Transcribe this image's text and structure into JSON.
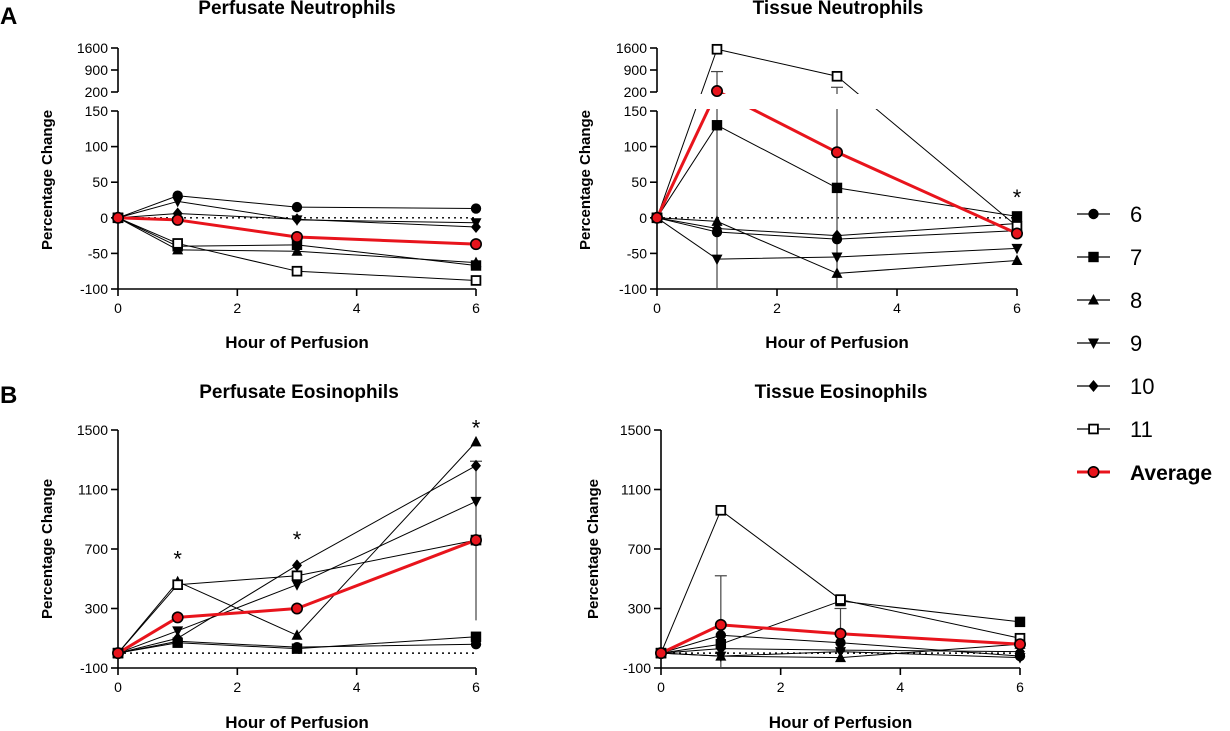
{
  "figure": {
    "panel_labels": [
      "A",
      "B"
    ],
    "x_values": [
      0,
      1,
      3,
      6
    ],
    "colors": {
      "average": "#e8141c",
      "series": "#000000"
    }
  },
  "legend": {
    "entries": [
      {
        "key": "s6",
        "label": "6",
        "marker": "circle"
      },
      {
        "key": "s7",
        "label": "7",
        "marker": "square"
      },
      {
        "key": "s8",
        "label": "8",
        "marker": "triangle-up"
      },
      {
        "key": "s9",
        "label": "9",
        "marker": "triangle-down"
      },
      {
        "key": "s10",
        "label": "10",
        "marker": "diamond"
      },
      {
        "key": "s11",
        "label": "11",
        "marker": "open-square"
      },
      {
        "key": "avg",
        "label": "Average",
        "marker": "red-circle"
      }
    ]
  },
  "chart_data": [
    {
      "id": "perfusate-neutrophils",
      "type": "line",
      "title": "Perfusate Neutrophils",
      "xlabel": "Hour of Perfusion",
      "ylabel": "Percentage Change",
      "xlim": [
        0,
        6
      ],
      "xticks": [
        0,
        2,
        4,
        6
      ],
      "xtick_labels": [
        "0",
        "2",
        "4",
        "6"
      ],
      "axis_break": true,
      "lower_ylim": [
        -100,
        150
      ],
      "lower_yticks": [
        -100,
        -50,
        0,
        50,
        100,
        150
      ],
      "lower_ytick_labels": [
        "-100",
        "-50",
        "0",
        "50",
        "100",
        "150"
      ],
      "upper_ylim": [
        200,
        1600
      ],
      "upper_yticks": [
        200,
        900,
        1600
      ],
      "upper_ytick_labels": [
        "200",
        "900",
        "1600"
      ],
      "x": [
        0,
        1,
        3,
        6
      ],
      "series": [
        {
          "name": "6",
          "values": [
            0,
            31,
            15,
            13
          ]
        },
        {
          "name": "7",
          "values": [
            0,
            -40,
            -38,
            -67
          ]
        },
        {
          "name": "8",
          "values": [
            0,
            -45,
            -47,
            -63
          ]
        },
        {
          "name": "9",
          "values": [
            0,
            23,
            -3,
            -7
          ]
        },
        {
          "name": "10",
          "values": [
            0,
            6,
            -2,
            -13
          ]
        },
        {
          "name": "11",
          "values": [
            0,
            -36,
            -75,
            -88
          ]
        },
        {
          "name": "Average",
          "values": [
            0,
            -3,
            -27,
            -37
          ]
        }
      ],
      "error_bars": [],
      "annotations": []
    },
    {
      "id": "tissue-neutrophils",
      "type": "line",
      "title": "Tissue Neutrophils",
      "xlabel": "Hour of Perfusion",
      "ylabel": "Percentage Change",
      "xlim": [
        0,
        6
      ],
      "xticks": [
        0,
        2,
        4,
        6
      ],
      "xtick_labels": [
        "0",
        "2",
        "4",
        "6"
      ],
      "axis_break": true,
      "lower_ylim": [
        -100,
        150
      ],
      "lower_yticks": [
        -100,
        -50,
        0,
        50,
        100,
        150
      ],
      "lower_ytick_labels": [
        "-100",
        "-50",
        "0",
        "50",
        "100",
        "150"
      ],
      "upper_ylim": [
        200,
        1600
      ],
      "upper_yticks": [
        200,
        900,
        1600
      ],
      "upper_ytick_labels": [
        "200",
        "900",
        "1600"
      ],
      "x": [
        0,
        1,
        3,
        6
      ],
      "series": [
        {
          "name": "6",
          "values": [
            0,
            -20,
            -30,
            -18
          ]
        },
        {
          "name": "7",
          "values": [
            0,
            130,
            42,
            2
          ]
        },
        {
          "name": "8",
          "values": [
            0,
            -5,
            -78,
            -60
          ]
        },
        {
          "name": "9",
          "values": [
            0,
            -58,
            -55,
            -43
          ]
        },
        {
          "name": "10",
          "values": [
            0,
            -15,
            -25,
            -8
          ]
        },
        {
          "name": "11",
          "values": [
            0,
            1560,
            700,
            -12
          ]
        },
        {
          "name": "Average",
          "values": [
            0,
            230,
            92,
            -22
          ]
        }
      ],
      "error_bars": [
        {
          "x": 1,
          "low": -100,
          "high": 850
        },
        {
          "x": 3,
          "low": -100,
          "high": 350
        }
      ],
      "annotations": [
        {
          "x": 6,
          "y": 32,
          "text": "*"
        }
      ]
    },
    {
      "id": "perfusate-eosinophils",
      "type": "line",
      "title": "Perfusate Eosinophils",
      "xlabel": "Hour of Perfusion",
      "ylabel": "Percentage Change",
      "xlim": [
        0,
        6
      ],
      "xticks": [
        0,
        2,
        4,
        6
      ],
      "xtick_labels": [
        "0",
        "2",
        "4",
        "6"
      ],
      "axis_break": false,
      "ylim": [
        -100,
        1500
      ],
      "yticks": [
        -100,
        300,
        700,
        1100,
        1500
      ],
      "ytick_labels": [
        "-100",
        "300",
        "700",
        "1100",
        "1500"
      ],
      "x": [
        0,
        1,
        3,
        6
      ],
      "series": [
        {
          "name": "6",
          "values": [
            0,
            80,
            40,
            60
          ]
        },
        {
          "name": "7",
          "values": [
            0,
            70,
            30,
            110
          ]
        },
        {
          "name": "8",
          "values": [
            0,
            480,
            120,
            1420
          ]
        },
        {
          "name": "9",
          "values": [
            0,
            150,
            460,
            1020
          ]
        },
        {
          "name": "10",
          "values": [
            0,
            100,
            590,
            1260
          ]
        },
        {
          "name": "11",
          "values": [
            0,
            460,
            520,
            760
          ]
        },
        {
          "name": "Average",
          "values": [
            0,
            240,
            300,
            760
          ]
        }
      ],
      "error_bars": [
        {
          "x": 6,
          "low": 220,
          "high": 1290
        }
      ],
      "annotations": [
        {
          "x": 1,
          "y": 650,
          "text": "*"
        },
        {
          "x": 3,
          "y": 780,
          "text": "*"
        },
        {
          "x": 6,
          "y": 1530,
          "text": "*"
        }
      ]
    },
    {
      "id": "tissue-eosinophils",
      "type": "line",
      "title": "Tissue Eosinophils",
      "xlabel": "Hour of Perfusion",
      "ylabel": "Percentage Change",
      "xlim": [
        0,
        6
      ],
      "xticks": [
        0,
        2,
        4,
        6
      ],
      "xtick_labels": [
        "0",
        "2",
        "4",
        "6"
      ],
      "axis_break": false,
      "ylim": [
        -100,
        1500
      ],
      "yticks": [
        -100,
        300,
        700,
        1100,
        1500
      ],
      "ytick_labels": [
        "-100",
        "300",
        "700",
        "1100",
        "1500"
      ],
      "x": [
        0,
        1,
        3,
        6
      ],
      "series": [
        {
          "name": "6",
          "values": [
            0,
            120,
            70,
            -20
          ]
        },
        {
          "name": "7",
          "values": [
            0,
            60,
            350,
            210
          ]
        },
        {
          "name": "8",
          "values": [
            0,
            -20,
            -30,
            60
          ]
        },
        {
          "name": "9",
          "values": [
            0,
            -20,
            10,
            -30
          ]
        },
        {
          "name": "10",
          "values": [
            0,
            30,
            20,
            10
          ]
        },
        {
          "name": "11",
          "values": [
            0,
            960,
            360,
            100
          ]
        },
        {
          "name": "Average",
          "values": [
            0,
            190,
            130,
            60
          ]
        }
      ],
      "error_bars": [
        {
          "x": 1,
          "low": -100,
          "high": 520
        },
        {
          "x": 3,
          "low": -20,
          "high": 300
        }
      ],
      "annotations": []
    }
  ]
}
